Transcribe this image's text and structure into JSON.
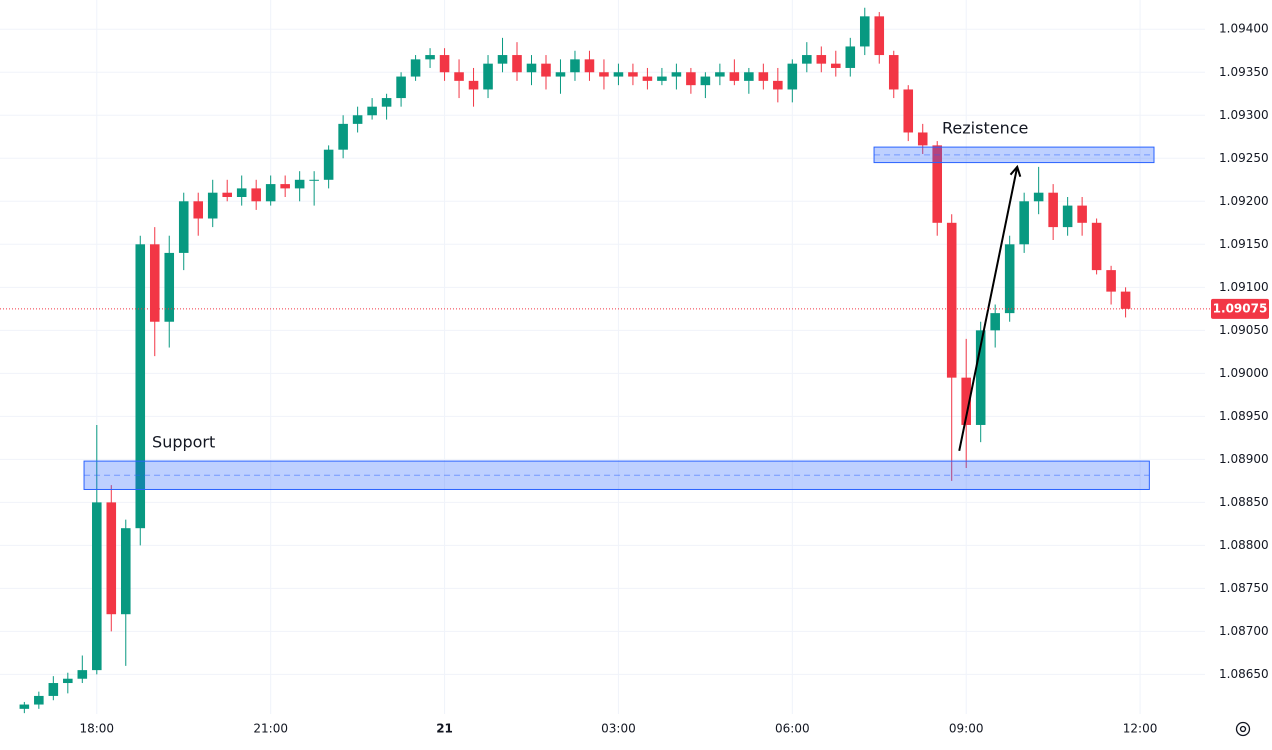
{
  "chart_data": {
    "type": "candlestick",
    "up_color": "#089981",
    "down_color": "#f23645",
    "grid": true,
    "x": [
      16.75,
      17,
      17.25,
      17.5,
      17.75,
      18,
      18.25,
      18.5,
      18.75,
      19,
      19.25,
      19.5,
      19.75,
      20,
      20.25,
      20.5,
      20.75,
      21,
      21.25,
      21.5,
      21.75,
      22,
      22.25,
      22.5,
      22.75,
      23,
      23.25,
      23.5,
      23.75,
      24,
      24.25,
      24.5,
      24.75,
      25,
      25.25,
      25.5,
      25.75,
      26,
      26.25,
      26.5,
      26.75,
      27,
      27.25,
      27.5,
      27.75,
      28,
      28.25,
      28.5,
      28.75,
      29,
      29.25,
      29.5,
      29.75,
      30,
      30.25,
      30.5,
      30.75,
      31,
      31.25,
      31.5,
      31.75,
      32,
      32.25,
      32.5,
      32.75,
      33,
      33.25,
      33.5,
      33.75,
      34,
      34.25,
      34.5,
      34.75,
      35,
      35.25,
      35.5,
      35.75
    ],
    "open": [
      1.0861,
      1.08615,
      1.08625,
      1.0864,
      1.08645,
      1.08655,
      1.0885,
      1.0872,
      1.0882,
      1.0915,
      1.0906,
      1.0914,
      1.092,
      1.0918,
      1.0921,
      1.09205,
      1.09215,
      1.092,
      1.0922,
      1.09215,
      1.09225,
      1.09225,
      1.0926,
      1.0929,
      1.093,
      1.0931,
      1.0932,
      1.09345,
      1.09365,
      1.0937,
      1.0935,
      1.0934,
      1.0933,
      1.0936,
      1.0937,
      1.0935,
      1.0936,
      1.09345,
      1.0935,
      1.09365,
      1.0935,
      1.09345,
      1.0935,
      1.09345,
      1.0934,
      1.09345,
      1.0935,
      1.09335,
      1.09345,
      1.0935,
      1.0934,
      1.0935,
      1.0934,
      1.0933,
      1.0936,
      1.0937,
      1.0936,
      1.09355,
      1.0938,
      1.09415,
      1.0937,
      1.0933,
      1.0928,
      1.09265,
      1.09175,
      1.08995,
      1.0894,
      1.0905,
      1.0907,
      1.0915,
      1.092,
      1.0921,
      1.0917,
      1.09195,
      1.09175,
      1.0912,
      1.09095
    ],
    "high": [
      1.08618,
      1.0863,
      1.08648,
      1.08652,
      1.08672,
      1.0894,
      1.0887,
      1.0883,
      1.0916,
      1.0917,
      1.0916,
      1.0921,
      1.0921,
      1.09225,
      1.09225,
      1.0923,
      1.09225,
      1.0923,
      1.0923,
      1.09235,
      1.09235,
      1.09265,
      1.093,
      1.0931,
      1.0932,
      1.09325,
      1.0935,
      1.0937,
      1.09378,
      1.09378,
      1.09365,
      1.09355,
      1.0937,
      1.0939,
      1.09385,
      1.0937,
      1.0937,
      1.09365,
      1.09375,
      1.09375,
      1.09365,
      1.0936,
      1.0936,
      1.09355,
      1.09355,
      1.0936,
      1.09355,
      1.0935,
      1.0936,
      1.09365,
      1.09355,
      1.0936,
      1.09355,
      1.09365,
      1.09385,
      1.0938,
      1.09375,
      1.0939,
      1.09425,
      1.0942,
      1.09375,
      1.09335,
      1.0929,
      1.0927,
      1.09185,
      1.0904,
      1.0906,
      1.0908,
      1.0916,
      1.0921,
      1.0924,
      1.0922,
      1.09205,
      1.09205,
      1.0918,
      1.09125,
      1.091
    ],
    "low": [
      1.08605,
      1.0861,
      1.0862,
      1.08628,
      1.0864,
      1.0865,
      1.087,
      1.0866,
      1.088,
      1.0902,
      1.0903,
      1.0912,
      1.0916,
      1.0917,
      1.092,
      1.09195,
      1.0919,
      1.09195,
      1.09205,
      1.092,
      1.09195,
      1.09215,
      1.0925,
      1.0928,
      1.09295,
      1.09295,
      1.0931,
      1.0934,
      1.09355,
      1.0934,
      1.0932,
      1.0931,
      1.0932,
      1.0935,
      1.0934,
      1.09335,
      1.0933,
      1.09325,
      1.0934,
      1.0934,
      1.0933,
      1.09335,
      1.09335,
      1.0933,
      1.09335,
      1.0933,
      1.09325,
      1.0932,
      1.09335,
      1.09335,
      1.09325,
      1.0933,
      1.09315,
      1.09315,
      1.0935,
      1.0935,
      1.09345,
      1.09345,
      1.0937,
      1.0936,
      1.0932,
      1.0927,
      1.09255,
      1.0916,
      1.08875,
      1.0889,
      1.0892,
      1.0903,
      1.0906,
      1.0914,
      1.09185,
      1.09155,
      1.0916,
      1.0916,
      1.09115,
      1.0908,
      1.09065
    ],
    "close": [
      1.08615,
      1.08625,
      1.0864,
      1.08645,
      1.08655,
      1.0885,
      1.0872,
      1.0882,
      1.0915,
      1.0906,
      1.0914,
      1.092,
      1.0918,
      1.0921,
      1.09205,
      1.09215,
      1.092,
      1.0922,
      1.09215,
      1.09225,
      1.09225,
      1.0926,
      1.0929,
      1.093,
      1.0931,
      1.0932,
      1.09345,
      1.09365,
      1.0937,
      1.0935,
      1.0934,
      1.0933,
      1.0936,
      1.0937,
      1.0935,
      1.0936,
      1.09345,
      1.0935,
      1.09365,
      1.0935,
      1.09345,
      1.0935,
      1.09345,
      1.0934,
      1.09345,
      1.0935,
      1.09335,
      1.09345,
      1.0935,
      1.0934,
      1.0935,
      1.0934,
      1.0933,
      1.0936,
      1.0937,
      1.0936,
      1.09355,
      1.0938,
      1.09415,
      1.0937,
      1.0933,
      1.0928,
      1.09265,
      1.09175,
      1.08995,
      1.0894,
      1.0905,
      1.0907,
      1.0915,
      1.092,
      1.0921,
      1.0917,
      1.09195,
      1.09175,
      1.0912,
      1.09095,
      1.09075
    ],
    "xlim": [
      16.33,
      37.12
    ],
    "xticks": [
      {
        "value": 18,
        "label": "18:00"
      },
      {
        "value": 21,
        "label": "21:00"
      },
      {
        "value": 24,
        "label": "21"
      },
      {
        "value": 27,
        "label": "03:00"
      },
      {
        "value": 30,
        "label": "06:00"
      },
      {
        "value": 33,
        "label": "09:00"
      },
      {
        "value": 36,
        "label": "12:00"
      }
    ],
    "ylim": [
      1.08604,
      1.09434
    ],
    "yticks": [
      {
        "value": 1.0865,
        "label": "1.08650"
      },
      {
        "value": 1.087,
        "label": "1.08700"
      },
      {
        "value": 1.0875,
        "label": "1.08750"
      },
      {
        "value": 1.088,
        "label": "1.08800"
      },
      {
        "value": 1.0885,
        "label": "1.08850"
      },
      {
        "value": 1.089,
        "label": "1.08900"
      },
      {
        "value": 1.0895,
        "label": "1.08950"
      },
      {
        "value": 1.09,
        "label": "1.09000"
      },
      {
        "value": 1.0905,
        "label": "1.09050"
      },
      {
        "value": 1.091,
        "label": "1.09100"
      },
      {
        "value": 1.0915,
        "label": "1.09150"
      },
      {
        "value": 1.092,
        "label": "1.09200"
      },
      {
        "value": 1.0925,
        "label": "1.09250"
      },
      {
        "value": 1.093,
        "label": "1.09300"
      },
      {
        "value": 1.0935,
        "label": "1.09350"
      },
      {
        "value": 1.094,
        "label": "1.09400"
      }
    ],
    "last_price": {
      "value": 1.09075,
      "label": "1.09075"
    },
    "zones": [
      {
        "text": "Support",
        "x0": 17.78,
        "x1": 36.16,
        "y0": 1.08865,
        "y1": 1.08898
      },
      {
        "text": "Rezistence",
        "x0": 31.41,
        "x1": 36.24,
        "y0": 1.09245,
        "y1": 1.09263
      }
    ],
    "arrow": {
      "x": [
        32.88,
        33.88
      ],
      "y": [
        1.0891,
        1.0924
      ]
    }
  }
}
